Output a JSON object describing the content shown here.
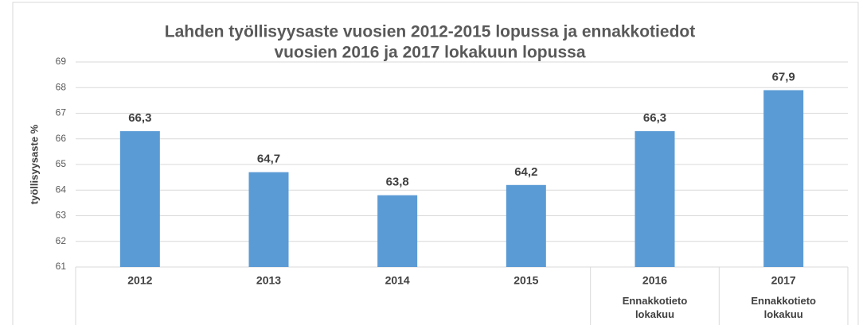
{
  "chart_data": {
    "type": "bar",
    "title": [
      "Lahden työllisyysaste vuosien 2012-2015 lopussa ja ennakkotiedot",
      "vuosien 2016 ja 2017 lokakuun lopussa"
    ],
    "y_label": "työllisyysaste %",
    "categories": [
      "2012",
      "2013",
      "2014",
      "2015",
      "2016",
      "2017"
    ],
    "category_notes": [
      null,
      null,
      null,
      null,
      "Ennakkotieto lokakuu",
      "Ennakkotieto lokakuu"
    ],
    "values": [
      66.3,
      64.7,
      63.8,
      64.2,
      66.3,
      67.9
    ],
    "value_labels": [
      "66,3",
      "64,7",
      "63,8",
      "64,2",
      "66,3",
      "67,9"
    ],
    "color": "#5b9bd5",
    "ylim": [
      61,
      69
    ],
    "yticks": [
      61,
      62,
      63,
      64,
      65,
      66,
      67,
      68,
      69
    ],
    "grid": true
  }
}
